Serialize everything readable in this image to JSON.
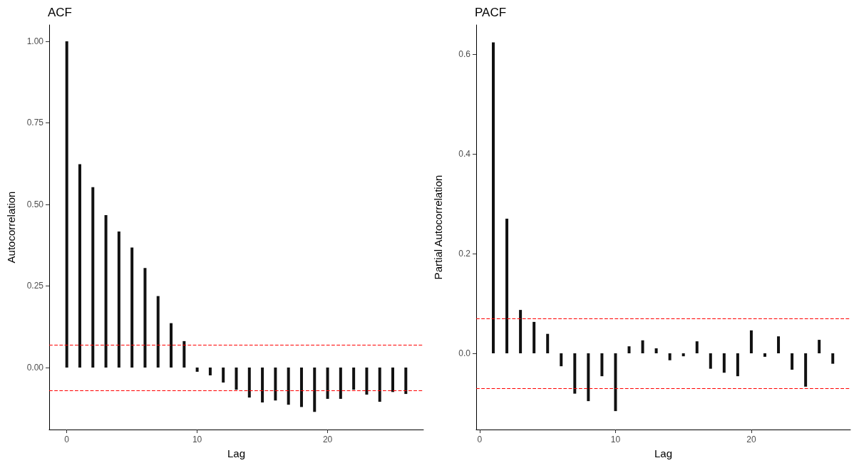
{
  "chart_data": [
    {
      "type": "bar",
      "title": "ACF",
      "xlabel": "Lag",
      "ylabel": "Autocorrelation",
      "x": [
        0,
        1,
        2,
        3,
        4,
        5,
        6,
        7,
        8,
        9,
        10,
        11,
        12,
        13,
        14,
        15,
        16,
        17,
        18,
        19,
        20,
        21,
        22,
        23,
        24,
        25,
        26
      ],
      "series": [
        {
          "color": "#111111",
          "values": [
            1.0,
            0.623,
            0.553,
            0.467,
            0.417,
            0.368,
            0.305,
            0.219,
            0.136,
            0.081,
            -0.013,
            -0.024,
            -0.046,
            -0.068,
            -0.092,
            -0.107,
            -0.101,
            -0.114,
            -0.121,
            -0.136,
            -0.096,
            -0.096,
            -0.068,
            -0.083,
            -0.105,
            -0.075,
            -0.081
          ]
        }
      ],
      "xlim": [
        -1.35,
        27.35
      ],
      "xticks": [
        0,
        10,
        20
      ],
      "ylim": [
        -0.19,
        1.05
      ],
      "yticks": [
        {
          "value": 0,
          "label": "0.00"
        },
        {
          "value": 0.25,
          "label": "0.25"
        },
        {
          "value": 0.5,
          "label": "0.50"
        },
        {
          "value": 0.75,
          "label": "0.75"
        },
        {
          "value": 1,
          "label": "1.00"
        }
      ],
      "ref_lines": [
        {
          "axis": "y",
          "value": 0.068,
          "color": "#ff0000",
          "line_style": "dashed"
        },
        {
          "axis": "y",
          "value": -0.068,
          "color": "#ff0000",
          "line_style": "dashed"
        }
      ],
      "grid": false
    },
    {
      "type": "bar",
      "title": "PACF",
      "xlabel": "Lag",
      "ylabel": "Partial Autocorrelation",
      "x": [
        1,
        2,
        3,
        4,
        5,
        6,
        7,
        8,
        9,
        10,
        11,
        12,
        13,
        14,
        15,
        16,
        17,
        18,
        19,
        20,
        21,
        22,
        23,
        24,
        25,
        26
      ],
      "series": [
        {
          "color": "#111111",
          "values": [
            0.624,
            0.27,
            0.087,
            0.063,
            0.039,
            -0.026,
            -0.081,
            -0.096,
            -0.046,
            -0.116,
            0.014,
            0.026,
            0.01,
            -0.014,
            -0.006,
            0.024,
            -0.031,
            -0.039,
            -0.046,
            0.046,
            -0.007,
            0.034,
            -0.033,
            -0.067,
            0.027,
            -0.021
          ]
        }
      ],
      "xlim": [
        -0.26,
        27.3
      ],
      "xticks": [
        0,
        10,
        20
      ],
      "ylim": [
        -0.153,
        0.659
      ],
      "yticks": [
        {
          "value": 0,
          "label": "0.0"
        },
        {
          "value": 0.2,
          "label": "0.2"
        },
        {
          "value": 0.4,
          "label": "0.4"
        },
        {
          "value": 0.6,
          "label": "0.6"
        }
      ],
      "ref_lines": [
        {
          "axis": "y",
          "value": 0.07,
          "color": "#ff0000",
          "line_style": "dashed"
        },
        {
          "axis": "y",
          "value": -0.07,
          "color": "#ff0000",
          "line_style": "dashed"
        }
      ],
      "grid": false
    }
  ]
}
